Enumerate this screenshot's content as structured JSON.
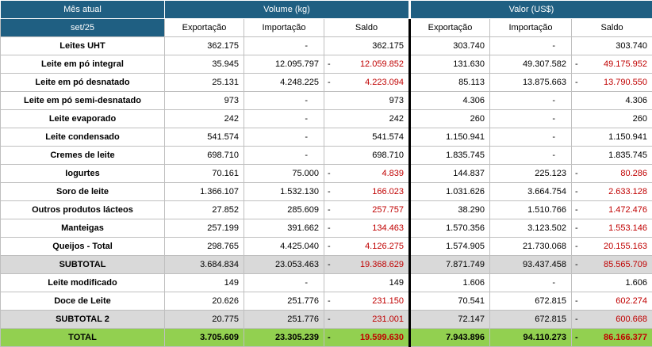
{
  "header": {
    "period_label": "Mês atual",
    "period": "set/25",
    "groups": [
      "Volume (kg)",
      "Valor (US$)"
    ],
    "columns": [
      "Exportação",
      "Importação",
      "Saldo",
      "Exportação",
      "Importação",
      "Saldo"
    ]
  },
  "rows": [
    {
      "label": "Leites UHT",
      "cells": [
        "362.175",
        "-",
        "362.175",
        "303.740",
        "-",
        "303.740"
      ]
    },
    {
      "label": "Leite em pó integral",
      "cells": [
        "35.945",
        "12.095.797",
        {
          "sign": "-",
          "value": "12.059.852"
        },
        "131.630",
        "49.307.582",
        {
          "sign": "-",
          "value": "49.175.952"
        }
      ]
    },
    {
      "label": "Leite em pó desnatado",
      "cells": [
        "25.131",
        "4.248.225",
        {
          "sign": "-",
          "value": "4.223.094"
        },
        "85.113",
        "13.875.663",
        {
          "sign": "-",
          "value": "13.790.550"
        }
      ]
    },
    {
      "label": "Leite em pó semi-desnatado",
      "cells": [
        "973",
        "-",
        "973",
        "4.306",
        "-",
        "4.306"
      ]
    },
    {
      "label": "Leite evaporado",
      "cells": [
        "242",
        "-",
        "242",
        "260",
        "-",
        "260"
      ]
    },
    {
      "label": "Leite condensado",
      "cells": [
        "541.574",
        "-",
        "541.574",
        "1.150.941",
        "-",
        "1.150.941"
      ]
    },
    {
      "label": "Cremes de leite",
      "cells": [
        "698.710",
        "-",
        "698.710",
        "1.835.745",
        "-",
        "1.835.745"
      ]
    },
    {
      "label": "Iogurtes",
      "cells": [
        "70.161",
        "75.000",
        {
          "sign": "-",
          "value": "4.839"
        },
        "144.837",
        "225.123",
        {
          "sign": "-",
          "value": "80.286"
        }
      ]
    },
    {
      "label": "Soro de leite",
      "cells": [
        "1.366.107",
        "1.532.130",
        {
          "sign": "-",
          "value": "166.023"
        },
        "1.031.626",
        "3.664.754",
        {
          "sign": "-",
          "value": "2.633.128"
        }
      ]
    },
    {
      "label": "Outros produtos lácteos",
      "cells": [
        "27.852",
        "285.609",
        {
          "sign": "-",
          "value": "257.757"
        },
        "38.290",
        "1.510.766",
        {
          "sign": "-",
          "value": "1.472.476"
        }
      ]
    },
    {
      "label": "Manteigas",
      "cells": [
        "257.199",
        "391.662",
        {
          "sign": "-",
          "value": "134.463"
        },
        "1.570.356",
        "3.123.502",
        {
          "sign": "-",
          "value": "1.553.146"
        }
      ]
    },
    {
      "label": "Queijos - Total",
      "cells": [
        "298.765",
        "4.425.040",
        {
          "sign": "-",
          "value": "4.126.275"
        },
        "1.574.905",
        "21.730.068",
        {
          "sign": "-",
          "value": "20.155.163"
        }
      ]
    },
    {
      "label": "SUBTOTAL",
      "style": "subtotal",
      "cells": [
        "3.684.834",
        "23.053.463",
        {
          "sign": "-",
          "value": "19.368.629"
        },
        "7.871.749",
        "93.437.458",
        {
          "sign": "-",
          "value": "85.565.709"
        }
      ]
    },
    {
      "label": "Leite modificado",
      "cells": [
        "149",
        "-",
        "149",
        "1.606",
        "-",
        "1.606"
      ]
    },
    {
      "label": "Doce de Leite",
      "cells": [
        "20.626",
        "251.776",
        {
          "sign": "-",
          "value": "231.150"
        },
        "70.541",
        "672.815",
        {
          "sign": "-",
          "value": "602.274"
        }
      ]
    },
    {
      "label": "SUBTOTAL 2",
      "style": "subtotal",
      "cells": [
        "20.775",
        "251.776",
        {
          "sign": "-",
          "value": "231.001"
        },
        "72.147",
        "672.815",
        {
          "sign": "-",
          "value": "600.668"
        }
      ]
    },
    {
      "label": "TOTAL",
      "style": "total",
      "cells": [
        "3.705.609",
        "23.305.239",
        {
          "sign": "-",
          "value": "19.599.630"
        },
        "7.943.896",
        "94.110.273",
        {
          "sign": "-",
          "value": "86.166.377"
        }
      ]
    }
  ]
}
